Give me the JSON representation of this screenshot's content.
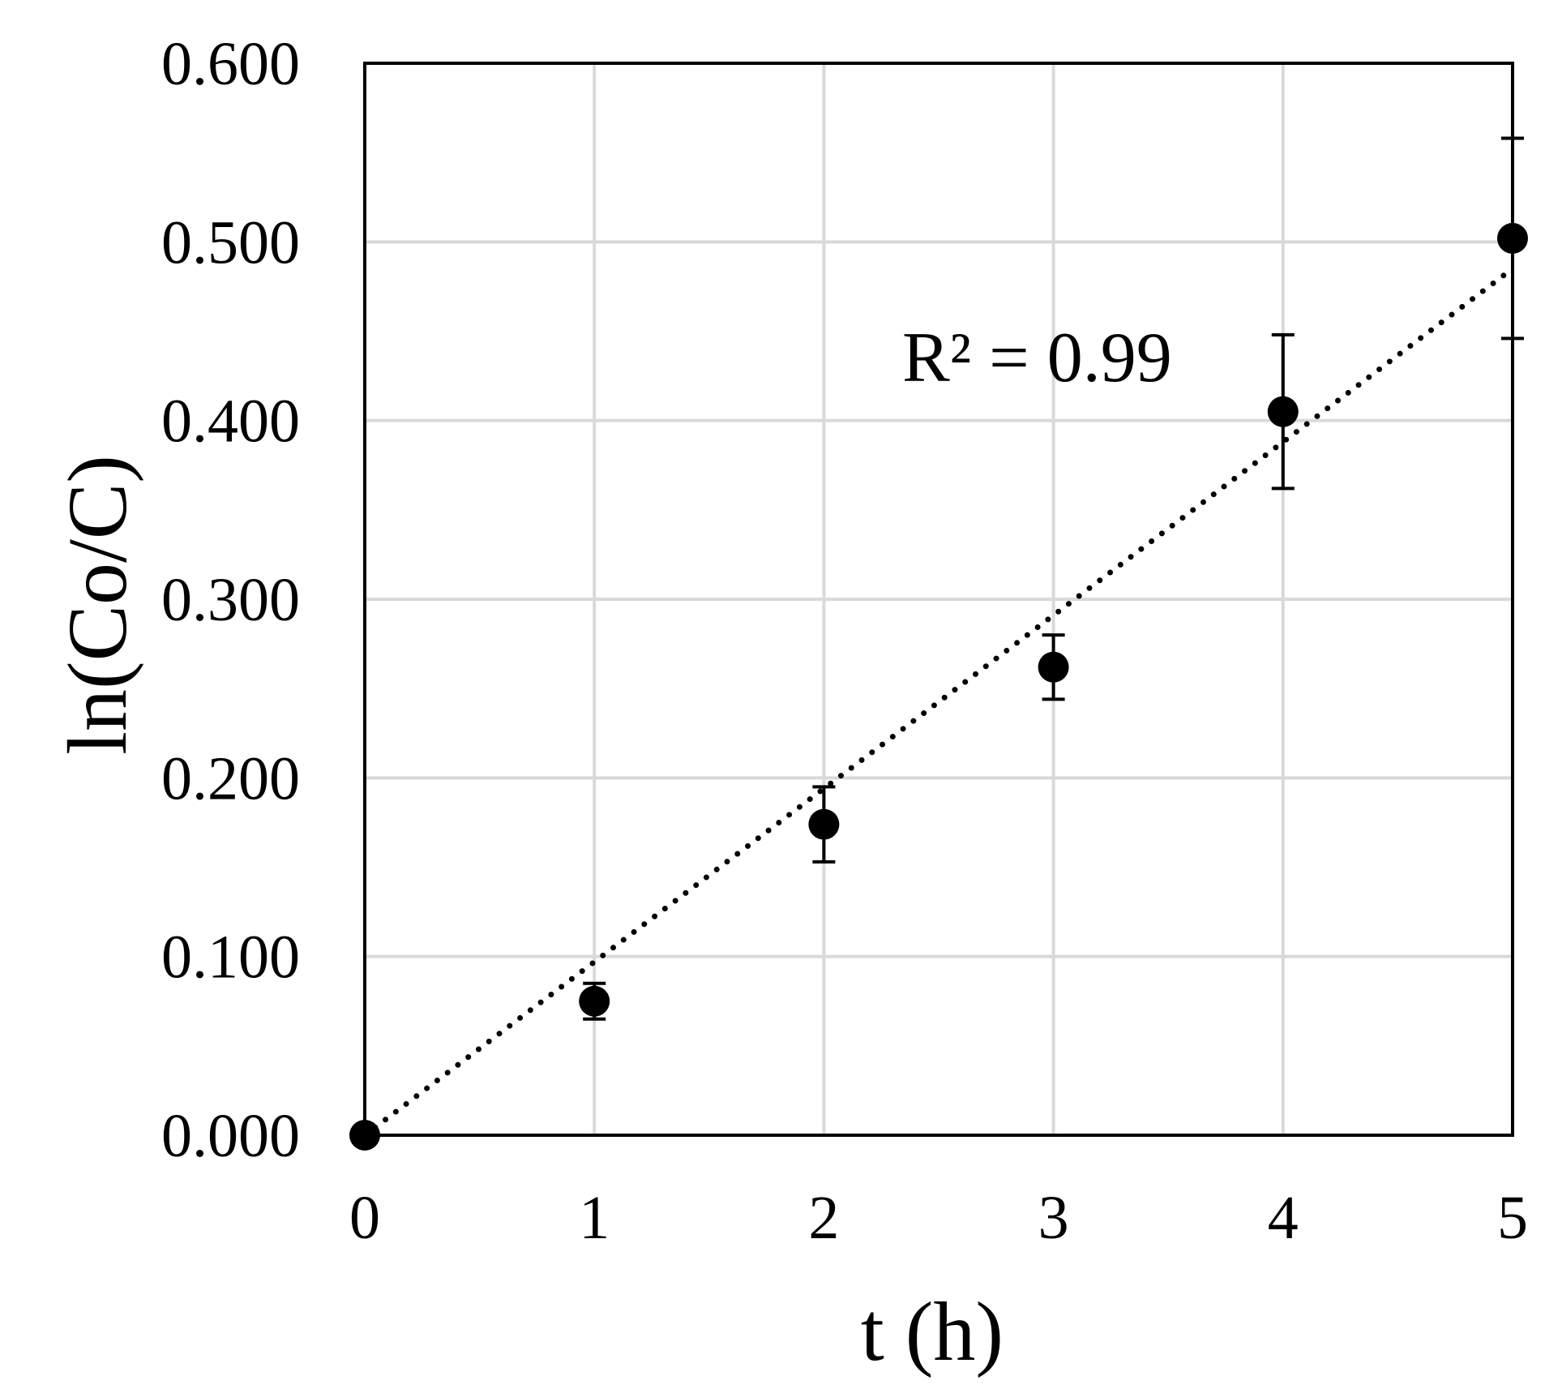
{
  "chart_data": {
    "type": "scatter",
    "xlabel": "t (h)",
    "ylabel": "ln(Co/C)",
    "xlim": [
      0,
      5
    ],
    "ylim": [
      0,
      0.6
    ],
    "x_ticks": [
      "0",
      "1",
      "2",
      "3",
      "4",
      "5"
    ],
    "y_ticks": [
      "0.000",
      "0.100",
      "0.200",
      "0.300",
      "0.400",
      "0.500",
      "0.600"
    ],
    "grid": true,
    "series": [
      {
        "x": [
          0,
          1,
          2,
          3,
          4,
          5
        ],
        "y": [
          0.0,
          0.075,
          0.174,
          0.262,
          0.405,
          0.502
        ],
        "error": [
          0.0,
          0.01,
          0.021,
          0.018,
          0.043,
          0.056
        ]
      }
    ],
    "trendline": {
      "style": "dotted",
      "x": [
        0,
        5
      ],
      "y": [
        0.0,
        0.485
      ]
    },
    "annotation": "R² = 0.99",
    "colors": {
      "marker": "#000000",
      "grid": "#d9d9d9",
      "frame": "#000000"
    }
  }
}
